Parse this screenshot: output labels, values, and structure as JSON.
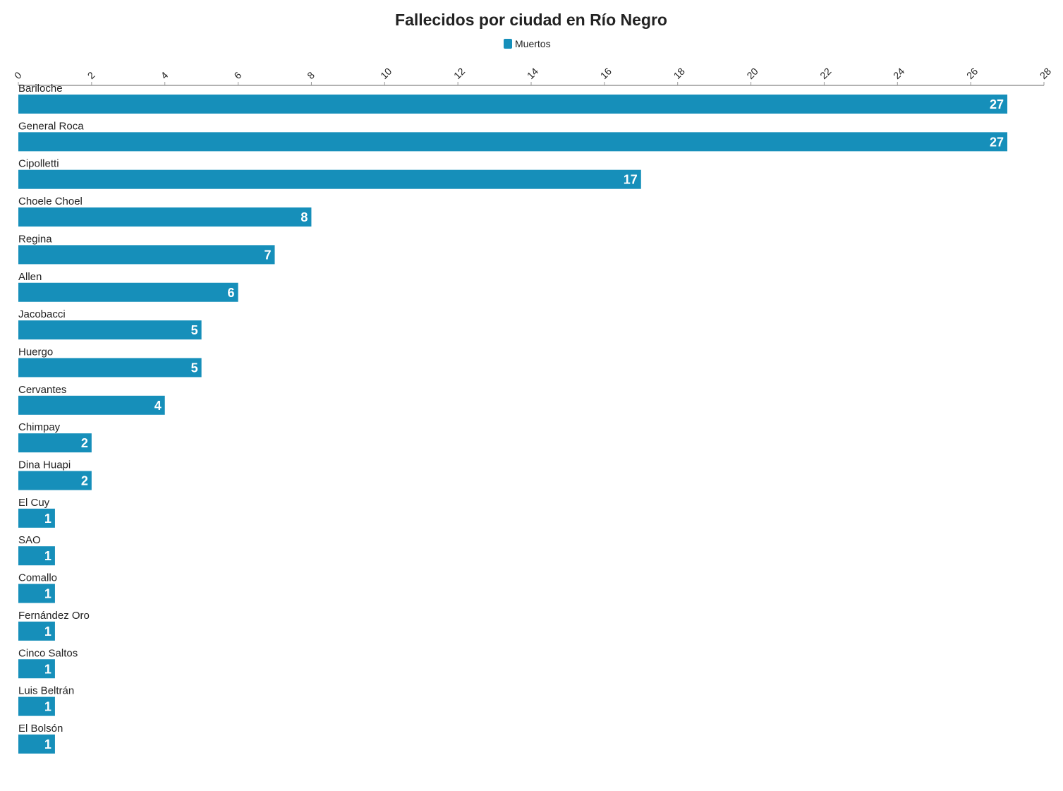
{
  "chart_data": {
    "type": "bar",
    "orientation": "horizontal",
    "title": "Fallecidos por ciudad en Río Negro",
    "categories": [
      "Bariloche",
      "General Roca",
      "Cipolletti",
      "Choele Choel",
      "Regina",
      "Allen",
      "Jacobacci",
      "Huergo",
      "Cervantes",
      "Chimpay",
      "Dina Huapi",
      "El Cuy",
      "SAO",
      "Comallo",
      "Fernández Oro",
      "Cinco Saltos",
      "Luis Beltrán",
      "El Bolsón"
    ],
    "series": [
      {
        "name": "Muertos",
        "color": "#168fba",
        "values": [
          27,
          27,
          17,
          8,
          7,
          6,
          5,
          5,
          4,
          2,
          2,
          1,
          1,
          1,
          1,
          1,
          1,
          1
        ]
      }
    ],
    "xlim": [
      0,
      28
    ],
    "xticks": [
      0,
      2,
      4,
      6,
      8,
      10,
      12,
      14,
      16,
      18,
      20,
      22,
      24,
      26,
      28
    ],
    "legend": "top"
  }
}
